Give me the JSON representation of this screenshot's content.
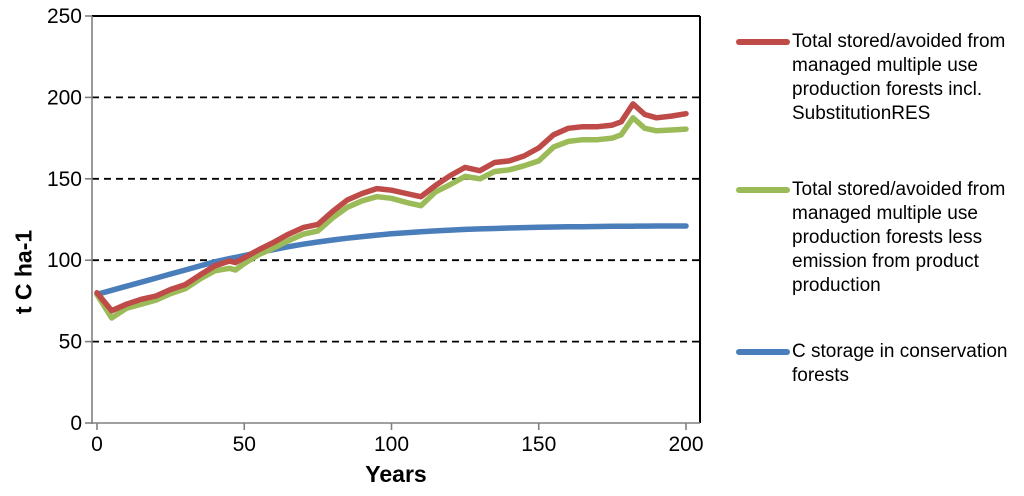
{
  "chart_data": {
    "type": "line",
    "x_axis": {
      "title": "Years",
      "min": 0,
      "max": 200,
      "ticks": [
        0,
        50,
        100,
        150,
        200
      ]
    },
    "y_axis": {
      "title": "t C ha-1",
      "min": 0,
      "max": 250,
      "ticks": [
        0,
        50,
        100,
        150,
        200,
        250
      ]
    },
    "gridlines": {
      "y_values": [
        50,
        100,
        150,
        200
      ],
      "style": "dashed"
    },
    "legend_position": "right",
    "x": [
      0,
      5,
      10,
      15,
      20,
      25,
      30,
      35,
      40,
      45,
      47,
      50,
      55,
      60,
      65,
      70,
      75,
      80,
      85,
      90,
      95,
      100,
      105,
      110,
      115,
      120,
      125,
      130,
      135,
      140,
      145,
      150,
      155,
      160,
      165,
      170,
      175,
      178,
      182,
      186,
      190,
      195,
      200
    ],
    "series": [
      {
        "id": "total-incl-substitutionres",
        "name": "Total stored/avoided from managed multiple use production forests incl. SubstitutionRES",
        "legend_lines": [
          "Total stored/avoided from",
          "managed multiple use",
          "production forests incl.",
          "SubstitutionRES"
        ],
        "color": "#BE4B48",
        "values": [
          80,
          69,
          73,
          76,
          78,
          82,
          85,
          91,
          96.5,
          99.5,
          98.5,
          101.5,
          106.5,
          111,
          116,
          120,
          122,
          130,
          137,
          141,
          144,
          143,
          141,
          139,
          146,
          152,
          157,
          155,
          160,
          161,
          164,
          169,
          177,
          181,
          182,
          182,
          183,
          185,
          196,
          189.5,
          187.5,
          188.5,
          190
        ]
      },
      {
        "id": "total-less-product-emission",
        "name": "Total stored/avoided from managed multiple use production forests less emission from product production",
        "legend_lines": [
          "Total stored/avoided from",
          "managed multiple use",
          "production forests less",
          "emission from product",
          "production"
        ],
        "color": "#9BBB59",
        "values": [
          79,
          64.5,
          70.5,
          73,
          75.5,
          79.5,
          82.5,
          88.5,
          93.5,
          95,
          94,
          98,
          103.5,
          107.5,
          112,
          116,
          118,
          126,
          132.5,
          136.5,
          139,
          138,
          135.5,
          133.5,
          142,
          146.5,
          151.5,
          150,
          154.5,
          155.5,
          158,
          161,
          169.5,
          173,
          174,
          174,
          175,
          177,
          187.5,
          181,
          179.5,
          180,
          180.5
        ]
      },
      {
        "id": "c-storage-conservation",
        "name": "C storage in conservation forests",
        "legend_lines": [
          "C storage in conservation",
          "forests"
        ],
        "color": "#4A7EBB",
        "values": [
          79,
          81.5,
          84,
          86.5,
          89,
          91.5,
          94,
          96.5,
          99,
          101,
          101.7,
          102.8,
          104.8,
          106.6,
          108.3,
          109.8,
          111.2,
          112.4,
          113.5,
          114.5,
          115.4,
          116.2,
          116.9,
          117.5,
          118,
          118.5,
          118.9,
          119.2,
          119.5,
          119.8,
          120,
          120.2,
          120.4,
          120.5,
          120.6,
          120.7,
          120.8,
          120.85,
          120.9,
          120.95,
          121,
          121,
          121
        ]
      }
    ],
    "colors": {
      "axis_gray": "#808080",
      "border_black": "#000000",
      "grid_black": "#000000"
    }
  }
}
